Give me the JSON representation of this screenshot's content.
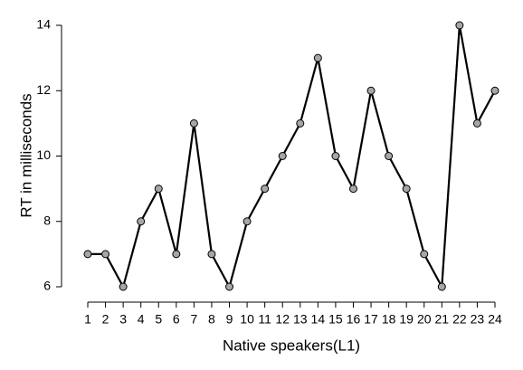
{
  "chart_data": {
    "type": "line",
    "x_label": "Native speakers(L1)",
    "y_label": "RT in milliseconds",
    "x": [
      1,
      2,
      3,
      4,
      5,
      6,
      7,
      8,
      9,
      10,
      11,
      12,
      13,
      14,
      15,
      16,
      17,
      18,
      19,
      20,
      21,
      22,
      23,
      24
    ],
    "values": [
      7,
      7,
      6,
      8,
      9,
      7,
      11,
      7,
      6,
      8,
      9,
      10,
      11,
      13,
      10,
      9,
      12,
      10,
      9,
      7,
      6,
      14,
      11,
      12
    ],
    "color": "#000000",
    "marker_color": "#a6a6a6",
    "xlim": [
      1,
      24
    ],
    "xticks": [
      1,
      2,
      3,
      4,
      5,
      6,
      7,
      8,
      9,
      10,
      11,
      12,
      13,
      14,
      15,
      16,
      17,
      18,
      19,
      20,
      21,
      22,
      23,
      24
    ],
    "ylim": [
      6,
      14
    ],
    "yticks": [
      6,
      8,
      10,
      12,
      14
    ]
  }
}
